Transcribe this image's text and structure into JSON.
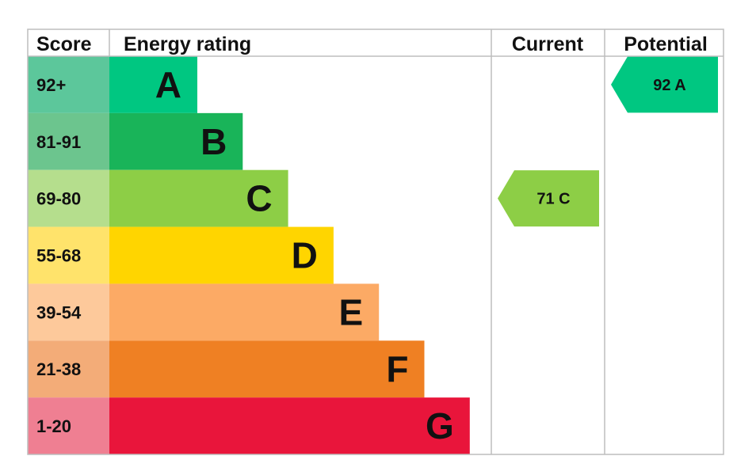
{
  "chart_data": {
    "type": "bar",
    "columns": {
      "score": "Score",
      "rating": "Energy rating",
      "current": "Current",
      "potential": "Potential"
    },
    "bands": [
      {
        "letter": "A",
        "range": "92+",
        "color": "#00c781",
        "score_bg": "#5cc79b"
      },
      {
        "letter": "B",
        "range": "81-91",
        "color": "#19b459",
        "score_bg": "#6cc58e"
      },
      {
        "letter": "C",
        "range": "69-80",
        "color": "#8dce46",
        "score_bg": "#b5de8d"
      },
      {
        "letter": "D",
        "range": "55-68",
        "color": "#ffd500",
        "score_bg": "#ffe36b"
      },
      {
        "letter": "E",
        "range": "39-54",
        "color": "#fcaa65",
        "score_bg": "#fdc99b"
      },
      {
        "letter": "F",
        "range": "21-38",
        "color": "#ef8023",
        "score_bg": "#f3ac78"
      },
      {
        "letter": "G",
        "range": "1-20",
        "color": "#e9153b",
        "score_bg": "#ef7f92"
      }
    ],
    "current": {
      "value": 71,
      "band": "C",
      "label": "71  C",
      "color": "#8dce46"
    },
    "potential": {
      "value": 92,
      "band": "A",
      "label": "92  A",
      "color": "#00c781"
    }
  }
}
